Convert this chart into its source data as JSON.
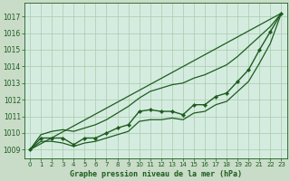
{
  "background_color": "#c8dcc8",
  "plot_bg_color": "#d4ece0",
  "grid_color": "#aacaaa",
  "line_color": "#1e5c1e",
  "title": "Graphe pression niveau de la mer (hPa)",
  "ylim": [
    1008.5,
    1017.8
  ],
  "xlim": [
    -0.5,
    23.5
  ],
  "yticks": [
    1009,
    1010,
    1011,
    1012,
    1013,
    1014,
    1015,
    1016,
    1017
  ],
  "xticks": [
    0,
    1,
    2,
    3,
    4,
    5,
    6,
    7,
    8,
    9,
    10,
    11,
    12,
    13,
    14,
    15,
    16,
    17,
    18,
    19,
    20,
    21,
    22,
    23
  ],
  "main_line": {
    "x": [
      0,
      1,
      2,
      3,
      4,
      5,
      6,
      7,
      8,
      9,
      10,
      11,
      12,
      13,
      14,
      15,
      16,
      17,
      18,
      19,
      20,
      21,
      22,
      23
    ],
    "y": [
      1009.0,
      1009.7,
      1009.7,
      1009.7,
      1009.3,
      1009.7,
      1009.7,
      1010.0,
      1010.3,
      1010.5,
      1011.3,
      1011.4,
      1011.3,
      1011.3,
      1011.1,
      1011.7,
      1011.7,
      1012.2,
      1012.4,
      1013.1,
      1013.8,
      1015.0,
      1016.1,
      1017.2
    ]
  },
  "straight_line": {
    "x": [
      0,
      23
    ],
    "y": [
      1009.0,
      1017.2
    ]
  },
  "upper_line": {
    "x": [
      0,
      1,
      2,
      3,
      4,
      5,
      6,
      7,
      8,
      9,
      10,
      11,
      12,
      13,
      14,
      15,
      16,
      17,
      18,
      19,
      20,
      21,
      22,
      23
    ],
    "y": [
      1009.0,
      1009.9,
      1010.1,
      1010.2,
      1010.1,
      1010.3,
      1010.5,
      1010.8,
      1011.2,
      1011.6,
      1012.1,
      1012.5,
      1012.7,
      1012.9,
      1013.0,
      1013.3,
      1013.5,
      1013.8,
      1014.1,
      1014.6,
      1015.2,
      1015.8,
      1016.4,
      1017.2
    ]
  },
  "lower_line": {
    "x": [
      0,
      1,
      2,
      3,
      4,
      5,
      6,
      7,
      8,
      9,
      10,
      11,
      12,
      13,
      14,
      15,
      16,
      17,
      18,
      19,
      20,
      21,
      22,
      23
    ],
    "y": [
      1009.0,
      1009.5,
      1009.5,
      1009.4,
      1009.2,
      1009.4,
      1009.5,
      1009.7,
      1009.9,
      1010.1,
      1010.7,
      1010.8,
      1010.8,
      1010.9,
      1010.8,
      1011.2,
      1011.3,
      1011.7,
      1011.9,
      1012.5,
      1013.1,
      1014.2,
      1015.4,
      1017.2
    ]
  }
}
